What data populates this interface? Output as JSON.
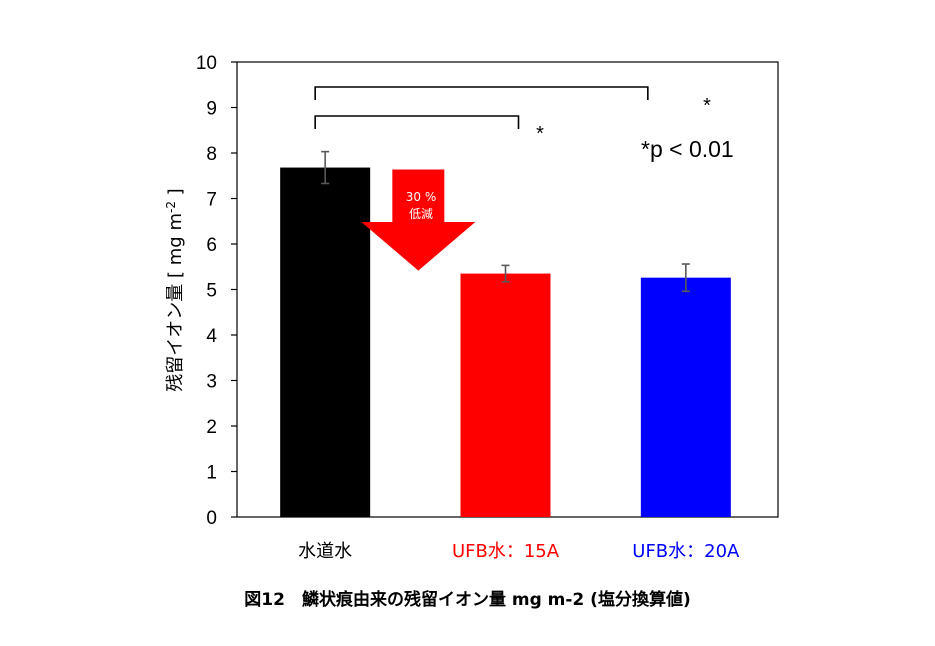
{
  "chart_data": {
    "type": "bar",
    "ylabel": "残留イオン量 [ mg m",
    "ylabel_sup": "-2",
    "ylabel_end": " ]",
    "ylim": [
      0,
      10
    ],
    "yticks": [
      "0",
      "1",
      "2",
      "3",
      "4",
      "5",
      "6",
      "7",
      "8",
      "9",
      "10"
    ],
    "categories": [
      "水道水",
      "UFB水：15A",
      "UFB水：20A"
    ],
    "values": [
      7.68,
      5.35,
      5.26
    ],
    "errors": [
      0.35,
      0.18,
      0.3
    ],
    "colors": [
      "#000000",
      "#ff0000",
      "#0000ff"
    ],
    "label_colors": [
      "#000000",
      "#ff0000",
      "#0000ff"
    ],
    "grid": false,
    "annotations": {
      "significance_marks": [
        "*",
        "*"
      ],
      "p_value_note": "*p < 0.01",
      "arrow_line1": "30 %",
      "arrow_line2": "低減",
      "arrow_color": "#ff0000"
    }
  },
  "caption": "図12　鱗状痕由来の残留イオン量 mg m-2 (塩分換算値)"
}
